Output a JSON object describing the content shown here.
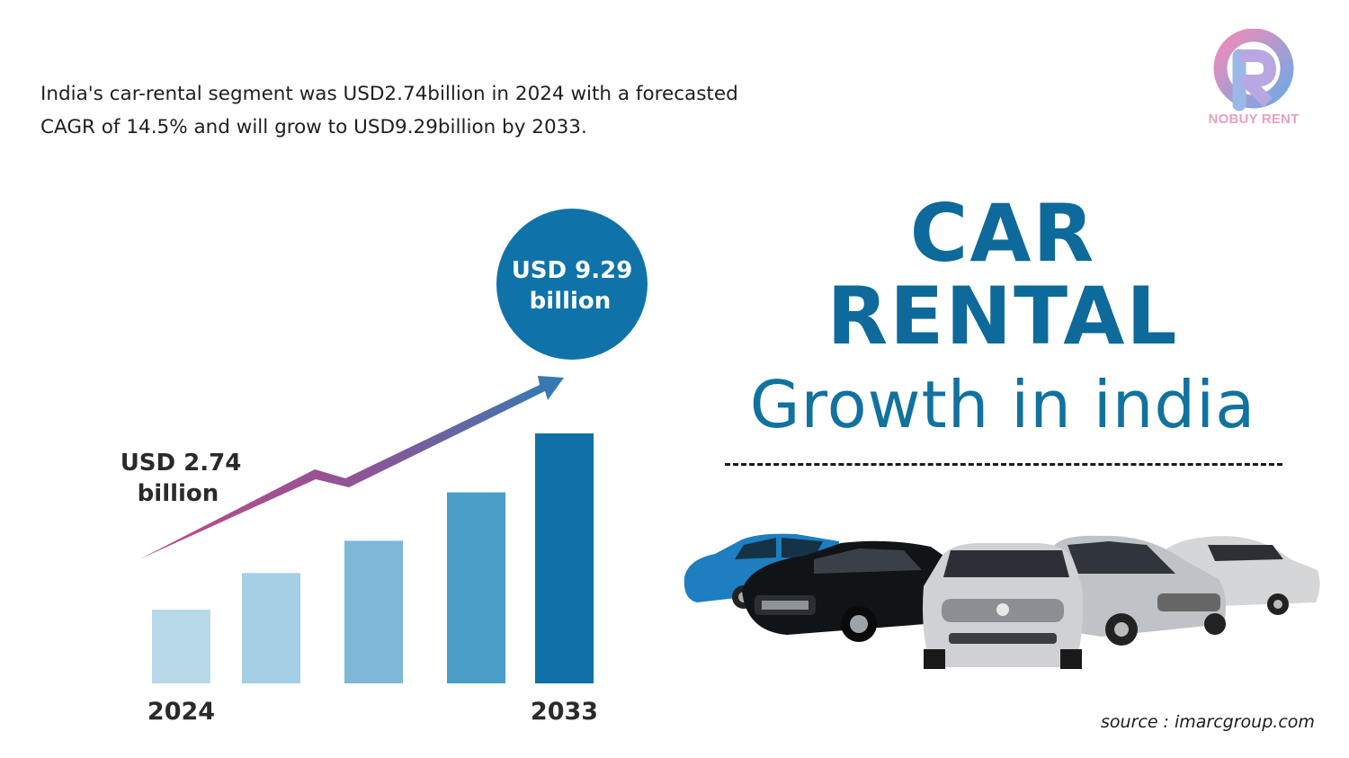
{
  "intro": {
    "line1": "India's car-rental segment was USD2.74billion in 2024 with a forecasted",
    "line2": "CAGR of 14.5% and will grow to USD9.29billion by 2033."
  },
  "brand": {
    "name": "NOBUY RENT",
    "pink": "#f08cb8",
    "blue": "#6ea9e6"
  },
  "headline": {
    "line1": "CAR",
    "line2": "RENTAL",
    "line3": "Growth in india",
    "color": "#0d6a9a"
  },
  "source": "source : imarcgroup.com",
  "chart_data": {
    "type": "bar",
    "categories": [
      "2024",
      "",
      "",
      "",
      "2033"
    ],
    "values": [
      2.74,
      4.1,
      5.3,
      7.1,
      9.29
    ],
    "bar_colors": [
      "#b8d9ea",
      "#a5cfe5",
      "#7db8d9",
      "#4a9dc7",
      "#0f70a8"
    ],
    "start_label": {
      "line1": "USD 2.74",
      "line2": "billion"
    },
    "end_label": {
      "line1": "USD 9.29",
      "line2": "billion"
    },
    "bubble_color": "#0f73a9",
    "trend_arrow": true,
    "ylim": [
      0,
      9.29
    ]
  }
}
